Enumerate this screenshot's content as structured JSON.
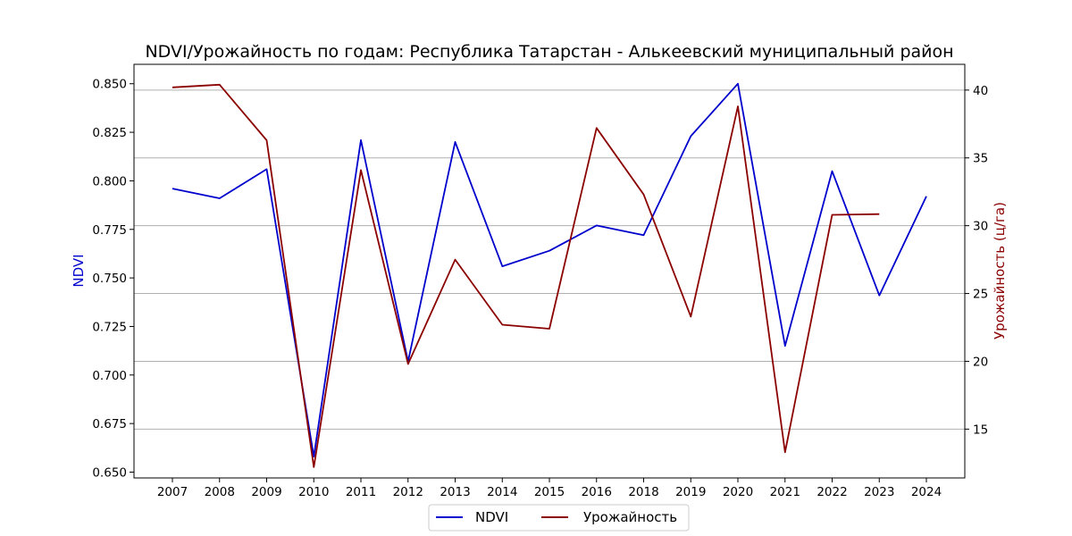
{
  "chart_data": {
    "type": "line",
    "title": "NDVI/Урожайность по годам: Республика Татарстан - Алькеевский муниципальный район",
    "x": [
      "2007",
      "2008",
      "2009",
      "2010",
      "2011",
      "2012",
      "2013",
      "2014",
      "2015",
      "2016",
      "2018",
      "2019",
      "2020",
      "2021",
      "2022",
      "2023",
      "2024"
    ],
    "y_left": {
      "label": "NDVI",
      "color": "#0000cd",
      "lim": [
        0.647,
        0.86
      ],
      "ticks": [
        "0.650",
        "0.675",
        "0.700",
        "0.725",
        "0.750",
        "0.775",
        "0.800",
        "0.825",
        "0.850"
      ]
    },
    "y_right": {
      "label": "Урожайность (ц/га)",
      "color": "#8b0000",
      "lim": [
        11.4,
        41.9
      ],
      "ticks": [
        "15",
        "20",
        "25",
        "30",
        "35",
        "40"
      ]
    },
    "series": [
      {
        "name": "NDVI",
        "axis": "left",
        "color": "#0000cd",
        "values": [
          0.796,
          0.791,
          0.806,
          0.658,
          0.821,
          0.707,
          0.82,
          0.756,
          0.764,
          0.777,
          0.772,
          0.823,
          0.85,
          0.715,
          0.805,
          0.741,
          0.792
        ]
      },
      {
        "name": "Урожайность",
        "axis": "right",
        "color": "#8b0000",
        "values": [
          40.2,
          40.4,
          36.3,
          12.2,
          34.1,
          19.8,
          27.5,
          22.7,
          22.4,
          37.2,
          32.3,
          23.3,
          38.8,
          13.3,
          30.8,
          30.85,
          null
        ]
      }
    ],
    "grid": "horizontal-right-axis",
    "legend": "bottom-center"
  }
}
